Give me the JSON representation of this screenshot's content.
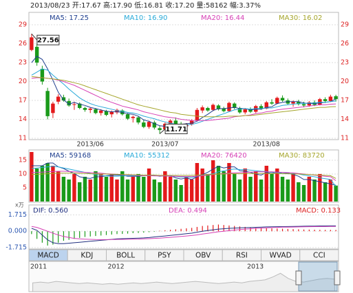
{
  "chart_data": [
    {
      "type": "candlestick",
      "title": "2013/08/23 开:17.67 高:17.90 低:16.81 收:17.20 量:58162 幅:3.37%",
      "categories": [
        null,
        null,
        null,
        null,
        null,
        null,
        null,
        null,
        null,
        null,
        null,
        "2013/06",
        null,
        null,
        null,
        null,
        null,
        null,
        null,
        null,
        null,
        null,
        null,
        null,
        null,
        "2013/07",
        null,
        null,
        null,
        null,
        null,
        null,
        null,
        null,
        null,
        null,
        null,
        null,
        null,
        null,
        null,
        null,
        null,
        null,
        "2013/08",
        null,
        null,
        null,
        null,
        null,
        null,
        null,
        null,
        null,
        null,
        null,
        null,
        null
      ],
      "open": [
        25.0,
        25.5,
        22.0,
        18.5,
        15.0,
        16.8,
        17.5,
        16.9,
        16.3,
        16.5,
        15.8,
        15.5,
        15.6,
        15.0,
        15.3,
        14.8,
        15.1,
        15.4,
        14.8,
        14.2,
        14.3,
        13.5,
        12.8,
        13.5,
        12.6,
        12.4,
        13.3,
        13.8,
        13.3,
        12.9,
        13.2,
        13.8,
        15.4,
        15.8,
        15.5,
        16.2,
        15.7,
        15.3,
        16.5,
        15.8,
        15.1,
        15.6,
        15.2,
        16.1,
        15.7,
        16.7,
        16.5,
        17.4,
        17.0,
        16.5,
        16.8,
        16.4,
        16.2,
        16.7,
        16.3,
        17.2,
        16.9,
        17.67
      ],
      "high": [
        27.56,
        26.0,
        22.5,
        19.0,
        16.8,
        18.0,
        17.9,
        17.3,
        16.8,
        16.7,
        16.0,
        15.9,
        15.8,
        15.6,
        15.5,
        15.4,
        15.7,
        15.6,
        15.0,
        14.6,
        14.5,
        14.0,
        13.8,
        13.8,
        13.0,
        13.5,
        14.0,
        14.3,
        13.6,
        13.4,
        14.0,
        15.8,
        16.2,
        16.0,
        16.5,
        16.4,
        16.0,
        16.8,
        16.7,
        16.0,
        15.8,
        15.9,
        16.3,
        16.4,
        16.9,
        17.2,
        17.6,
        17.8,
        17.3,
        17.0,
        17.1,
        16.8,
        16.9,
        17.0,
        17.4,
        17.5,
        17.9,
        17.9
      ],
      "low": [
        24.8,
        22.5,
        19.5,
        14.0,
        14.2,
        16.4,
        16.8,
        16.0,
        15.5,
        15.6,
        15.2,
        15.0,
        14.8,
        14.6,
        14.5,
        14.3,
        14.8,
        14.6,
        13.9,
        13.5,
        13.2,
        12.6,
        12.5,
        12.4,
        11.71,
        12.2,
        13.0,
        13.1,
        12.6,
        12.5,
        13.0,
        13.7,
        15.0,
        15.2,
        15.3,
        15.4,
        15.1,
        15.2,
        15.6,
        14.9,
        14.8,
        15.0,
        15.0,
        15.5,
        15.6,
        16.3,
        16.4,
        16.8,
        16.3,
        16.0,
        16.2,
        15.9,
        16.0,
        16.1,
        16.2,
        16.6,
        16.8,
        16.81
      ],
      "close": [
        27.0,
        23.0,
        20.0,
        14.5,
        16.5,
        17.6,
        17.0,
        16.2,
        16.4,
        15.8,
        15.5,
        15.7,
        15.0,
        15.4,
        14.7,
        15.2,
        15.5,
        14.8,
        14.1,
        14.4,
        13.5,
        12.8,
        13.6,
        12.7,
        12.3,
        13.3,
        13.8,
        13.3,
        12.9,
        13.2,
        13.8,
        15.5,
        15.9,
        15.4,
        16.3,
        15.6,
        15.3,
        16.6,
        15.8,
        15.1,
        15.6,
        15.2,
        16.1,
        15.7,
        16.7,
        16.5,
        17.4,
        17.0,
        16.5,
        16.8,
        16.4,
        16.2,
        16.7,
        16.3,
        17.2,
        16.9,
        17.6,
        17.2
      ],
      "up_color": "#e41a1c",
      "down_color": "#1a9a1a",
      "series": [
        {
          "name": "MA5: 17.25",
          "color": "#1f3f8f",
          "values": [
            23,
            24,
            23.5,
            22,
            20.2,
            18.3,
            17.1,
            16.4,
            16.7,
            16.4,
            16.2,
            15.9,
            15.7,
            15.5,
            15.3,
            15.2,
            15.2,
            15.1,
            14.9,
            14.8,
            14.5,
            13.9,
            13.7,
            13.3,
            13.0,
            12.9,
            13.1,
            13.1,
            13.2,
            13.3,
            13.4,
            13.7,
            14.3,
            14.8,
            15.4,
            15.7,
            15.7,
            15.8,
            15.9,
            15.7,
            15.7,
            15.5,
            15.6,
            15.6,
            15.9,
            16.0,
            16.5,
            16.7,
            16.8,
            16.8,
            16.8,
            16.6,
            16.5,
            16.5,
            16.6,
            16.7,
            16.8,
            17.25
          ]
        },
        {
          "name": "MA10: 16.90",
          "color": "#27a9d8",
          "values": [
            21,
            21.5,
            22,
            21.8,
            21,
            20.3,
            19.6,
            18.8,
            18.1,
            17.4,
            16.9,
            16.5,
            16.2,
            16.0,
            15.8,
            15.6,
            15.4,
            15.3,
            15.1,
            15.0,
            14.8,
            14.5,
            14.3,
            14.1,
            13.8,
            13.6,
            13.4,
            13.2,
            13.1,
            13.1,
            13.2,
            13.4,
            13.7,
            14.0,
            14.3,
            14.6,
            14.9,
            15.2,
            15.5,
            15.6,
            15.7,
            15.6,
            15.7,
            15.7,
            15.8,
            15.8,
            16.0,
            16.2,
            16.3,
            16.4,
            16.5,
            16.5,
            16.6,
            16.6,
            16.7,
            16.7,
            16.8,
            16.9
          ]
        },
        {
          "name": "MA20: 16.44",
          "color": "#d63fb5",
          "values": [
            20.5,
            20.6,
            20.6,
            20.5,
            20.4,
            20.2,
            20.0,
            19.7,
            19.4,
            19.0,
            18.6,
            18.2,
            17.8,
            17.4,
            17.0,
            16.7,
            16.4,
            16.1,
            15.9,
            15.7,
            15.5,
            15.2,
            15.0,
            14.8,
            14.6,
            14.4,
            14.3,
            14.2,
            14.0,
            13.9,
            13.8,
            13.8,
            13.8,
            13.8,
            13.9,
            14.0,
            14.1,
            14.2,
            14.4,
            14.5,
            14.6,
            14.7,
            14.9,
            15.0,
            15.2,
            15.3,
            15.5,
            15.6,
            15.7,
            15.8,
            15.9,
            16.0,
            16.1,
            16.2,
            16.3,
            16.3,
            16.4,
            16.44
          ]
        },
        {
          "name": "MA30: 16.02",
          "color": "#a5a52a",
          "values": [
            20.8,
            20.7,
            20.6,
            20.5,
            20.4,
            20.3,
            20.2,
            20.0,
            19.8,
            19.6,
            19.3,
            19.0,
            18.7,
            18.4,
            18.1,
            17.8,
            17.5,
            17.2,
            16.9,
            16.6,
            16.3,
            16.1,
            15.9,
            15.7,
            15.5,
            15.3,
            15.1,
            15.0,
            14.8,
            14.7,
            14.6,
            14.5,
            14.4,
            14.4,
            14.4,
            14.4,
            14.4,
            14.5,
            14.5,
            14.5,
            14.6,
            14.6,
            14.7,
            14.8,
            14.9,
            15.0,
            15.1,
            15.2,
            15.3,
            15.4,
            15.5,
            15.6,
            15.7,
            15.8,
            15.9,
            15.9,
            16.0,
            16.02
          ]
        }
      ],
      "annotations": [
        "27.56",
        "11.71"
      ],
      "ylim": [
        11,
        29
      ],
      "yticks": [
        11,
        14,
        17,
        20,
        23,
        26,
        29
      ],
      "grid": true
    },
    {
      "type": "bar",
      "values": [
        18,
        12,
        13,
        14,
        13,
        11,
        9,
        8,
        10,
        7,
        9,
        8,
        11,
        10,
        9,
        10,
        8,
        11,
        8,
        9,
        10,
        9,
        12,
        8,
        7,
        11,
        9,
        8,
        6,
        9,
        8,
        14,
        12,
        10,
        15,
        13,
        11,
        14,
        10,
        8,
        12,
        9,
        11,
        8,
        13,
        10,
        12,
        9,
        8,
        10,
        7,
        6,
        9,
        8,
        10,
        7,
        8,
        5.8
      ],
      "unit": "x万",
      "series": [
        {
          "name": "MA5: 59168",
          "color": "#1f3f8f",
          "values": [
            13,
            13,
            13,
            14,
            14,
            12.6,
            12,
            11,
            10.2,
            9,
            8.6,
            8.4,
            9,
            9,
            9.4,
            9.6,
            9.6,
            9.6,
            9.2,
            9.2,
            9.2,
            9.4,
            9.6,
            9.6,
            9.2,
            9.4,
            9.4,
            8.6,
            8.2,
            8.6,
            8,
            9,
            9.8,
            10.6,
            11.8,
            12.8,
            12.2,
            12.6,
            12.6,
            11.2,
            11,
            10.6,
            10,
            9.6,
            10.6,
            10.2,
            10.8,
            10.2,
            10.4,
            9.8,
            9.2,
            8,
            8,
            7.6,
            7.2,
            6.8,
            6.4,
            5.9
          ]
        },
        {
          "name": "MA10: 55312",
          "color": "#27a9d8",
          "values": [
            12,
            12.2,
            12.4,
            12.6,
            12.8,
            12.6,
            12.2,
            11.8,
            11.4,
            11,
            10.6,
            10.2,
            9.8,
            9.5,
            9.3,
            9.2,
            9.2,
            9.3,
            9.4,
            9.4,
            9.4,
            9.4,
            9.4,
            9.4,
            9.3,
            9.3,
            9.2,
            9.1,
            8.9,
            8.9,
            8.7,
            9.2,
            9.6,
            9.8,
            10.1,
            10.8,
            11.2,
            11.6,
            11.8,
            11.6,
            11.6,
            11.4,
            11.2,
            11,
            10.9,
            10.6,
            10.6,
            10.2,
            10.1,
            10.2,
            10,
            9.6,
            9.3,
            9,
            8.6,
            8.3,
            8,
            5.5
          ]
        },
        {
          "name": "MA20: 76420",
          "color": "#d63fb5",
          "values": [
            10.5,
            10.6,
            10.7,
            10.8,
            10.9,
            11,
            11,
            10.9,
            10.8,
            10.7,
            10.6,
            10.5,
            10.4,
            10.3,
            10.1,
            10,
            9.9,
            9.8,
            9.7,
            9.6,
            9.5,
            9.4,
            9.4,
            9.3,
            9.3,
            9.3,
            9.2,
            9.2,
            9.1,
            9.1,
            9.1,
            9.2,
            9.4,
            9.6,
            9.8,
            10,
            10.2,
            10.3,
            10.4,
            10.5,
            10.6,
            10.7,
            10.8,
            10.8,
            10.8,
            10.8,
            10.7,
            10.6,
            10.5,
            10.4,
            10.2,
            10,
            9.8,
            9.6,
            9.4,
            9.2,
            9,
            7.6
          ]
        },
        {
          "name": "MA30: 83720",
          "color": "#a5a52a",
          "values": [
            9.8,
            9.9,
            10,
            10.1,
            10.2,
            10.3,
            10.3,
            10.3,
            10.3,
            10.2,
            10.2,
            10.1,
            10.1,
            10,
            10,
            9.9,
            9.9,
            9.8,
            9.8,
            9.7,
            9.7,
            9.6,
            9.6,
            9.6,
            9.5,
            9.5,
            9.5,
            9.5,
            9.5,
            9.5,
            9.5,
            9.6,
            9.7,
            9.8,
            9.9,
            10,
            10,
            10.1,
            10.1,
            10.1,
            10.2,
            10.2,
            10.2,
            10.2,
            10.2,
            10.2,
            10.2,
            10.1,
            10.1,
            10,
            10,
            9.9,
            9.8,
            9.7,
            9.6,
            9.5,
            9.4,
            8.4
          ]
        }
      ],
      "ylim": [
        0,
        18
      ],
      "yticks": [
        5,
        10,
        15
      ],
      "grid": true
    },
    {
      "type": "macd",
      "values": [
        -0.3,
        -0.8,
        -1.2,
        -1.5,
        -1.4,
        -1.2,
        -1.0,
        -0.9,
        -0.8,
        -0.7,
        -0.6,
        -0.55,
        -0.5,
        -0.45,
        -0.4,
        -0.35,
        -0.3,
        -0.28,
        -0.25,
        -0.2,
        -0.18,
        -0.15,
        -0.1,
        -0.05,
        0.05,
        0.1,
        0.15,
        0.2,
        0.25,
        0.3,
        0.35,
        0.45,
        0.55,
        0.6,
        0.65,
        0.7,
        0.65,
        0.6,
        0.55,
        0.5,
        0.45,
        0.4,
        0.35,
        0.35,
        0.3,
        0.3,
        0.28,
        0.26,
        0.24,
        0.22,
        0.2,
        0.18,
        0.17,
        0.16,
        0.15,
        0.14,
        0.14,
        0.133
      ],
      "up_color": "#e41a1c",
      "down_color": "#1a9a1a",
      "series": [
        {
          "name": "DIF: 0.560",
          "color": "#1f2f7f",
          "values": [
            0.3,
            0.1,
            -0.4,
            -0.9,
            -1.2,
            -1.3,
            -1.3,
            -1.25,
            -1.2,
            -1.15,
            -1.1,
            -1.05,
            -1.0,
            -0.95,
            -0.9,
            -0.85,
            -0.8,
            -0.78,
            -0.76,
            -0.74,
            -0.72,
            -0.7,
            -0.66,
            -0.6,
            -0.55,
            -0.5,
            -0.44,
            -0.38,
            -0.32,
            -0.26,
            -0.2,
            -0.1,
            0.0,
            0.08,
            0.15,
            0.22,
            0.26,
            0.3,
            0.33,
            0.35,
            0.37,
            0.39,
            0.41,
            0.43,
            0.45,
            0.46,
            0.47,
            0.48,
            0.49,
            0.5,
            0.51,
            0.52,
            0.53,
            0.54,
            0.55,
            0.555,
            0.558,
            0.56
          ]
        },
        {
          "name": "DEA: 0.494",
          "color": "#d63fb5",
          "values": [
            0.5,
            0.4,
            0.2,
            0,
            -0.2,
            -0.4,
            -0.55,
            -0.65,
            -0.75,
            -0.8,
            -0.83,
            -0.85,
            -0.87,
            -0.88,
            -0.88,
            -0.87,
            -0.86,
            -0.85,
            -0.84,
            -0.83,
            -0.82,
            -0.8,
            -0.78,
            -0.75,
            -0.72,
            -0.68,
            -0.64,
            -0.6,
            -0.55,
            -0.5,
            -0.45,
            -0.38,
            -0.3,
            -0.22,
            -0.14,
            -0.06,
            0.0,
            0.06,
            0.12,
            0.17,
            0.22,
            0.26,
            0.3,
            0.33,
            0.36,
            0.38,
            0.4,
            0.42,
            0.43,
            0.44,
            0.45,
            0.46,
            0.47,
            0.48,
            0.485,
            0.49,
            0.492,
            0.494
          ]
        }
      ],
      "legend_extra": "MACD: 0.133",
      "ylim": [
        -2.0,
        2.6
      ],
      "yticks": [
        1.715,
        {
          "value": 0,
          "label": "0.000"
        },
        -1.715
      ],
      "grid": true
    },
    {
      "type": "area",
      "categories": [
        "2011",
        null,
        null,
        null,
        null,
        null,
        null,
        null,
        null,
        null,
        "2012",
        null,
        null,
        null,
        null,
        null,
        null,
        null,
        null,
        null,
        null,
        null,
        null,
        null,
        null,
        null,
        null,
        null,
        "2013",
        null,
        null,
        null,
        null,
        null,
        null,
        null,
        null,
        null,
        null,
        null
      ],
      "values": [
        12,
        13,
        12,
        14,
        13,
        12,
        11,
        12,
        11,
        10,
        11,
        10,
        11,
        12,
        11,
        12,
        13,
        12,
        11,
        12,
        13,
        14,
        13,
        12,
        11,
        12,
        13,
        12,
        14,
        15,
        16,
        20,
        25,
        18,
        14,
        13,
        15,
        17,
        18,
        17
      ],
      "color": "#bbbbbb",
      "ylim": [
        0,
        30
      ]
    }
  ],
  "tabs": [
    "MACD",
    "KDJ",
    "BOLL",
    "PSY",
    "OBV",
    "RSI",
    "WVAD",
    "CCI"
  ],
  "active_tab": "MACD"
}
